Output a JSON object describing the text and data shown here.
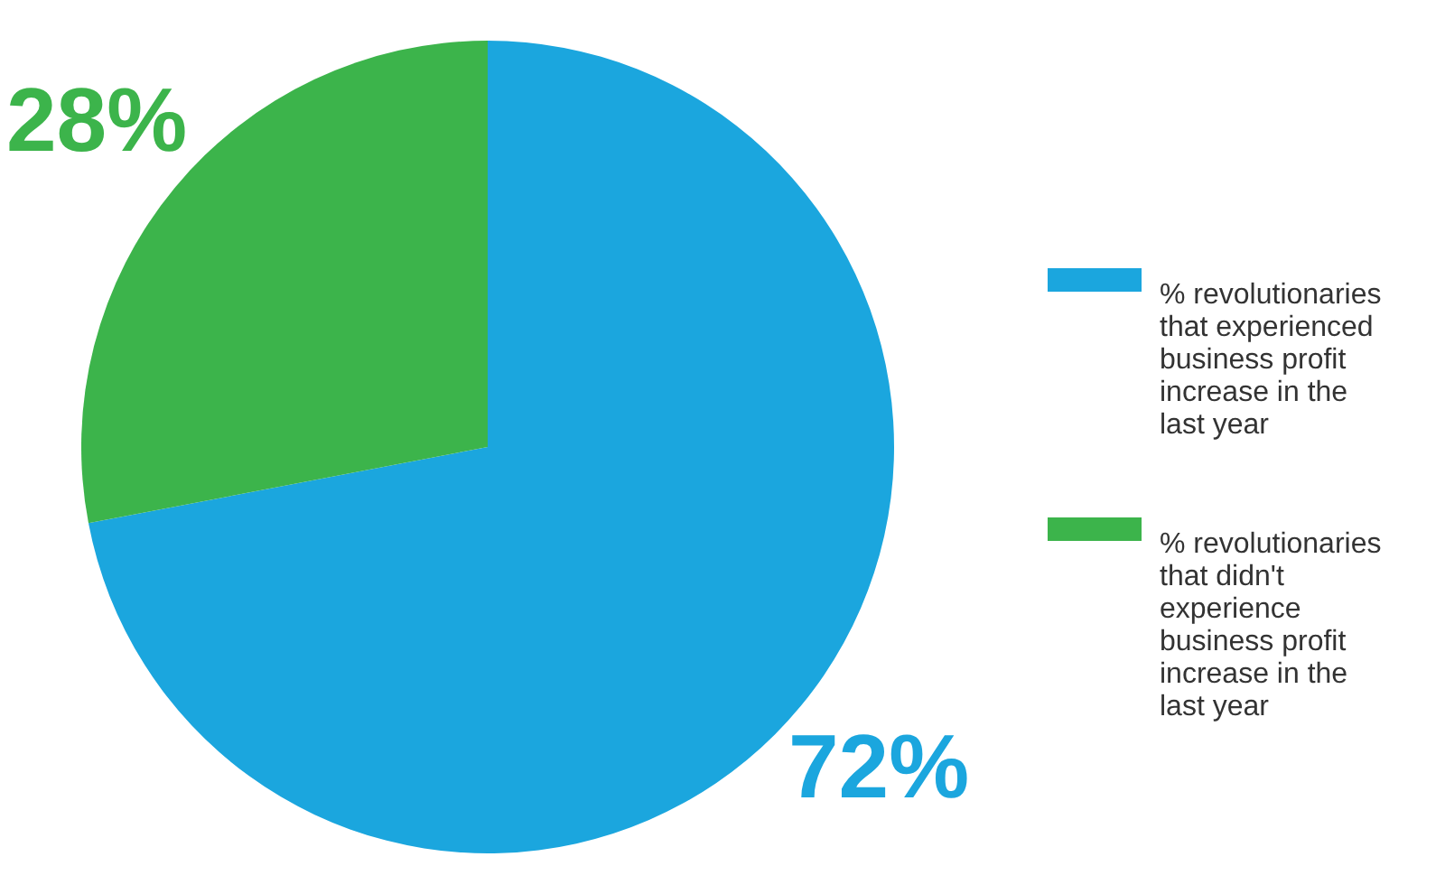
{
  "chart_data": {
    "type": "pie",
    "categories": [
      "% revolutionaries that experienced business profit increase in the last year",
      "% revolutionaries that didn't experience business profit increase in the last year"
    ],
    "values": [
      72,
      28
    ],
    "colors": [
      "#1ba6de",
      "#3cb44b"
    ],
    "value_labels": [
      "72%",
      "28%"
    ],
    "legend": "right"
  }
}
